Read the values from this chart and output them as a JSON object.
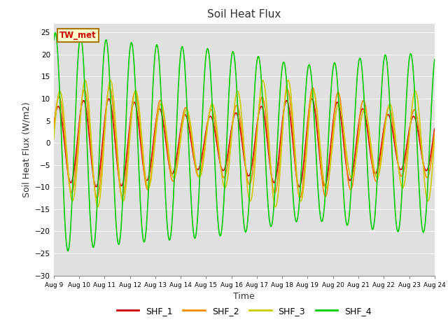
{
  "title": "Soil Heat Flux",
  "xlabel": "Time",
  "ylabel": "Soil Heat Flux (W/m2)",
  "ylim": [
    -30,
    27
  ],
  "yticks": [
    -30,
    -25,
    -20,
    -15,
    -10,
    -5,
    0,
    5,
    10,
    15,
    20,
    25
  ],
  "xtick_labels": [
    "Aug 9",
    "Aug 10",
    "Aug 11",
    "Aug 12",
    "Aug 13",
    "Aug 14",
    "Aug 15",
    "Aug 16",
    "Aug 17",
    "Aug 18",
    "Aug 19",
    "Aug 20",
    "Aug 21",
    "Aug 22",
    "Aug 23",
    "Aug 24"
  ],
  "legend_label": "TW_met",
  "legend_box_color": "#ffffcc",
  "legend_box_edge": "#aa7700",
  "legend_text_color": "#cc0000",
  "series_colors": [
    "#cc0000",
    "#ff8c00",
    "#cccc00",
    "#00cc00"
  ],
  "series_names": [
    "SHF_1",
    "SHF_2",
    "SHF_3",
    "SHF_4"
  ],
  "fig_bg_color": "#ffffff",
  "plot_bg_color": "#e0e0e0",
  "grid_color": "#ffffff",
  "line_width": 1.2
}
